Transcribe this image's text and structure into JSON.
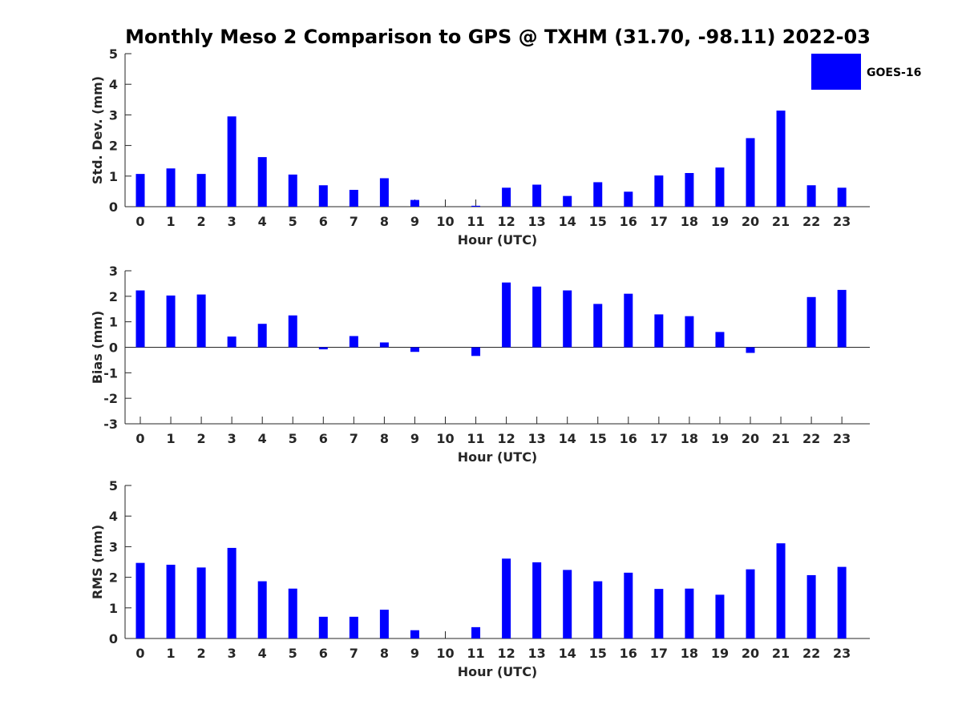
{
  "title": "Monthly Meso 2 Comparison to GPS @ TXHM (31.70, -98.11) 2022-03",
  "legend": {
    "label": "GOES-16",
    "color": "#0000ff"
  },
  "chart_data": [
    {
      "type": "bar",
      "xlabel": "Hour (UTC)",
      "ylabel": "Std. Dev. (mm)",
      "ylim": [
        0,
        5
      ],
      "yticks": [
        0,
        1,
        2,
        3,
        4,
        5
      ],
      "categories": [
        0,
        1,
        2,
        3,
        4,
        5,
        6,
        7,
        8,
        9,
        10,
        11,
        12,
        13,
        14,
        15,
        16,
        17,
        18,
        19,
        20,
        21,
        22,
        23
      ],
      "series": [
        {
          "name": "GOES-16",
          "color": "#0000ff",
          "values": [
            1.07,
            1.25,
            1.07,
            2.95,
            1.62,
            1.05,
            0.7,
            0.55,
            0.93,
            0.22,
            0,
            0.03,
            0.62,
            0.72,
            0.35,
            0.8,
            0.49,
            1.02,
            1.1,
            1.28,
            2.24,
            3.14,
            0.7,
            0.62
          ]
        }
      ]
    },
    {
      "type": "bar",
      "xlabel": "Hour (UTC)",
      "ylabel": "Bias (mm)",
      "ylim": [
        -3,
        3
      ],
      "yticks": [
        -3,
        -2,
        -1,
        0,
        1,
        2,
        3
      ],
      "categories": [
        0,
        1,
        2,
        3,
        4,
        5,
        6,
        7,
        8,
        9,
        10,
        11,
        12,
        13,
        14,
        15,
        16,
        17,
        18,
        19,
        20,
        21,
        22,
        23
      ],
      "series": [
        {
          "name": "GOES-16",
          "color": "#0000ff",
          "values": [
            2.23,
            2.03,
            2.07,
            0.42,
            0.92,
            1.25,
            -0.08,
            0.44,
            0.19,
            -0.18,
            0,
            -0.34,
            2.54,
            2.38,
            2.23,
            1.7,
            2.1,
            1.29,
            1.22,
            0.6,
            -0.22,
            0,
            1.97,
            2.25
          ]
        }
      ]
    },
    {
      "type": "bar",
      "xlabel": "Hour (UTC)",
      "ylabel": "RMS (mm)",
      "ylim": [
        0,
        5
      ],
      "yticks": [
        0,
        1,
        2,
        3,
        4,
        5
      ],
      "categories": [
        0,
        1,
        2,
        3,
        4,
        5,
        6,
        7,
        8,
        9,
        10,
        11,
        12,
        13,
        14,
        15,
        16,
        17,
        18,
        19,
        20,
        21,
        22,
        23
      ],
      "series": [
        {
          "name": "GOES-16",
          "color": "#0000ff",
          "values": [
            2.47,
            2.41,
            2.32,
            2.96,
            1.87,
            1.63,
            0.71,
            0.71,
            0.94,
            0.27,
            0,
            0.37,
            2.61,
            2.49,
            2.24,
            1.87,
            2.15,
            1.62,
            1.63,
            1.43,
            2.26,
            3.11,
            2.07,
            2.34
          ]
        }
      ]
    }
  ]
}
